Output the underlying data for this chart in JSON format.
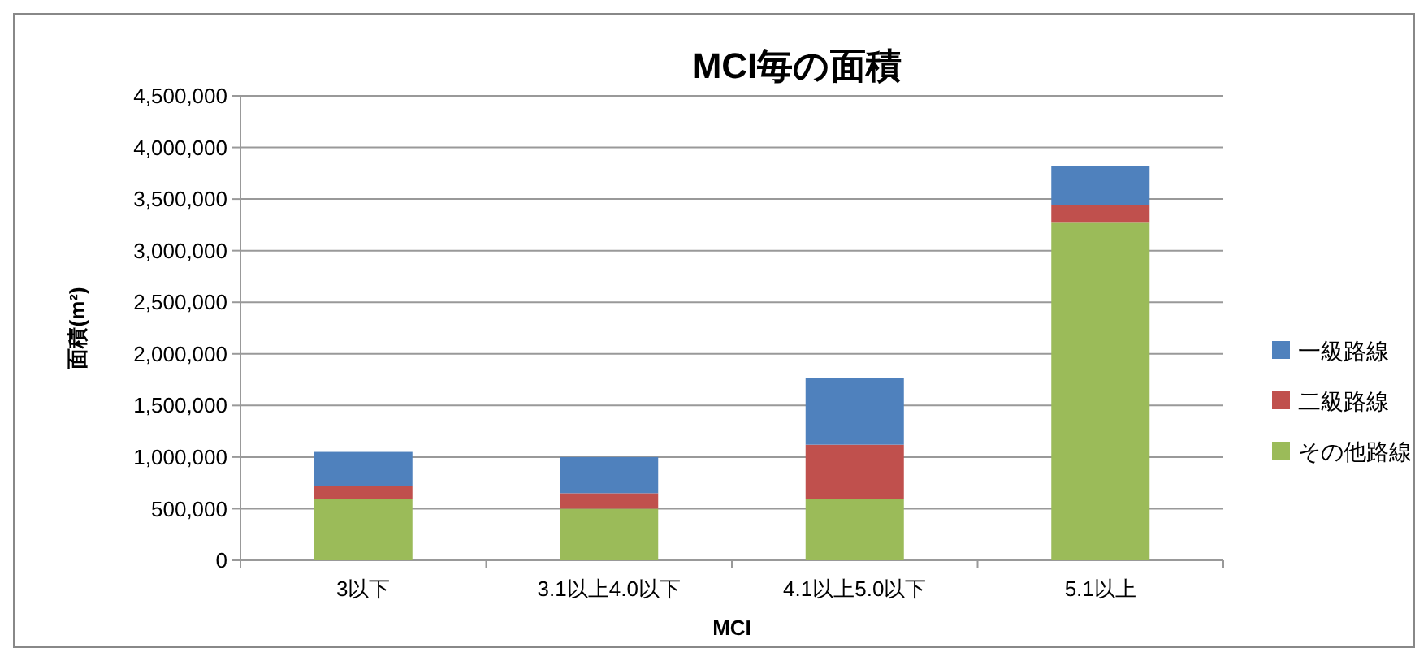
{
  "chart_data": {
    "type": "bar",
    "title": "MCI毎の面積",
    "xlabel": "MCI",
    "ylabel": "面積(m²)",
    "stacked": true,
    "grid": "y",
    "legend": "right",
    "categories": [
      "3以下",
      "3.1以上4.0以下",
      "4.1以上5.0以下",
      "5.1以上"
    ],
    "series": [
      {
        "name": "その他路線",
        "color": "#9bbb59",
        "values": [
          590000,
          500000,
          590000,
          3270000
        ]
      },
      {
        "name": "二級路線",
        "color": "#c0504d",
        "values": [
          130000,
          150000,
          530000,
          170000
        ]
      },
      {
        "name": "一級路線",
        "color": "#4f81bd",
        "values": [
          330000,
          350000,
          650000,
          380000
        ]
      }
    ],
    "ylim": [
      0,
      4500000
    ],
    "yticks": [
      {
        "value": 0,
        "label": "0"
      },
      {
        "value": 500000,
        "label": "500,000"
      },
      {
        "value": 1000000,
        "label": "1,000,000"
      },
      {
        "value": 1500000,
        "label": "1,500,000"
      },
      {
        "value": 2000000,
        "label": "2,000,000"
      },
      {
        "value": 2500000,
        "label": "2,500,000"
      },
      {
        "value": 3000000,
        "label": "3,000,000"
      },
      {
        "value": 3500000,
        "label": "3,500,000"
      },
      {
        "value": 4000000,
        "label": "4,000,000"
      },
      {
        "value": 4500000,
        "label": "4,500,000"
      }
    ]
  }
}
